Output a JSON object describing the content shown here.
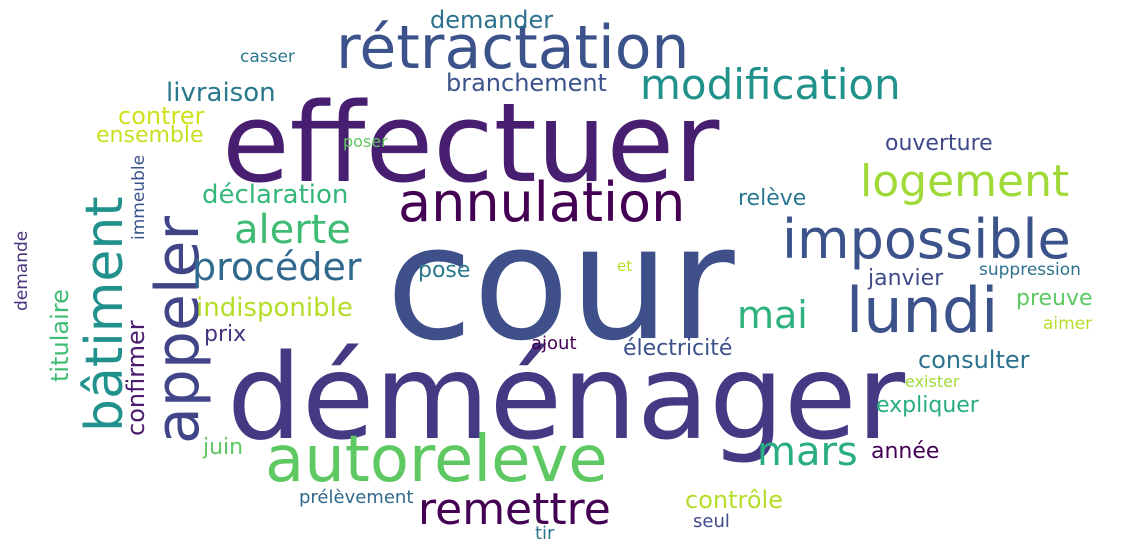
{
  "words": [
    {
      "text": "cour",
      "color": "#3e4f8a"
    },
    {
      "text": "déménager",
      "color": "#443983"
    },
    {
      "text": "effectuer",
      "color": "#481f70"
    },
    {
      "text": "rétractation",
      "color": "#3b528b"
    },
    {
      "text": "autoreleve",
      "color": "#5ec962"
    },
    {
      "text": "appeler",
      "color": "#414487"
    },
    {
      "text": "annulation",
      "color": "#440154"
    },
    {
      "text": "impossible",
      "color": "#3b528b"
    },
    {
      "text": "bâtiment",
      "color": "#21918c"
    },
    {
      "text": "modification",
      "color": "#21918c"
    },
    {
      "text": "lundi",
      "color": "#3b528b"
    },
    {
      "text": "remettre",
      "color": "#440154"
    },
    {
      "text": "logement",
      "color": "#a0da39"
    },
    {
      "text": "mars",
      "color": "#28ae80"
    },
    {
      "text": "procéder",
      "color": "#31688e"
    },
    {
      "text": "alerte",
      "color": "#3fbc73"
    },
    {
      "text": "mai",
      "color": "#2db27d"
    },
    {
      "text": "branchement",
      "color": "#3b528b"
    },
    {
      "text": "livraison",
      "color": "#2a788e"
    },
    {
      "text": "déclaration",
      "color": "#35b779"
    },
    {
      "text": "indisponible",
      "color": "#b5de2b"
    },
    {
      "text": "titulaire",
      "color": "#3fbc73"
    },
    {
      "text": "confirmer",
      "color": "#481b6d"
    },
    {
      "text": "consulter",
      "color": "#2c728e"
    },
    {
      "text": "contrôle",
      "color": "#b5de2b"
    },
    {
      "text": "demander",
      "color": "#2c728e"
    },
    {
      "text": "contrer",
      "color": "#d0e11c"
    },
    {
      "text": "ensemble",
      "color": "#c8e020"
    },
    {
      "text": "ouverture",
      "color": "#3e4a89"
    },
    {
      "text": "relève",
      "color": "#2a788e"
    },
    {
      "text": "janvier",
      "color": "#3e4a89"
    },
    {
      "text": "preuve",
      "color": "#5ec962"
    },
    {
      "text": "expliquer",
      "color": "#27ad81"
    },
    {
      "text": "électricité",
      "color": "#3b528b"
    },
    {
      "text": "année",
      "color": "#440154"
    },
    {
      "text": "juin",
      "color": "#5ec962"
    },
    {
      "text": "prix",
      "color": "#46327e"
    },
    {
      "text": "pose",
      "color": "#2a788e"
    },
    {
      "text": "suppression",
      "color": "#2c728e"
    },
    {
      "text": "ajout",
      "color": "#440154"
    },
    {
      "text": "aimer",
      "color": "#b5de2b"
    },
    {
      "text": "exister",
      "color": "#a0da39"
    },
    {
      "text": "prélèvement",
      "color": "#31688e"
    },
    {
      "text": "seul",
      "color": "#3e4a89"
    },
    {
      "text": "tir",
      "color": "#2a788e"
    },
    {
      "text": "casser",
      "color": "#2a788e"
    },
    {
      "text": "poser",
      "color": "#5ec962"
    },
    {
      "text": "immeuble",
      "color": "#3b528b"
    },
    {
      "text": "demande",
      "color": "#46327e"
    },
    {
      "text": "et",
      "color": "#b5de2b"
    }
  ]
}
